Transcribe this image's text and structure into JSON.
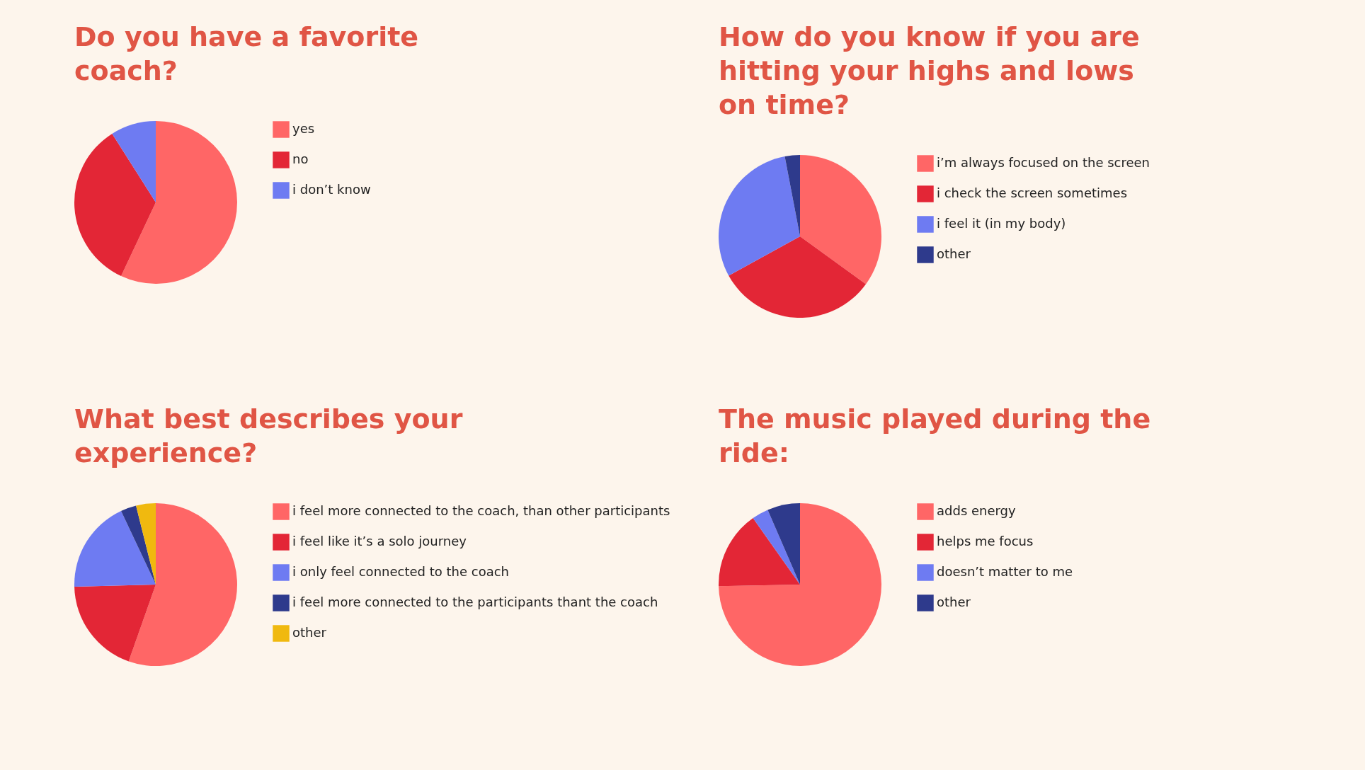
{
  "chart_data": [
    {
      "type": "pie",
      "title": "Do you have a favorite coach?",
      "categories": [
        "yes",
        "no",
        "i don’t know"
      ],
      "values": [
        57,
        34,
        9
      ],
      "colors": [
        "#ff6666",
        "#e32636",
        "#6e7bf2"
      ],
      "legend": "right"
    },
    {
      "type": "pie",
      "title": "How do you know if you are hitting your highs and lows on time?",
      "categories": [
        "i’m always focused on the screen",
        "i check the screen sometimes",
        "i feel it (in my body)",
        "other"
      ],
      "values": [
        35,
        32,
        30,
        3
      ],
      "colors": [
        "#ff6666",
        "#e32636",
        "#6e7bf2",
        "#2e3a8c"
      ],
      "legend": "right"
    },
    {
      "type": "pie",
      "title": "What best describes your experience?",
      "categories": [
        "i feel more connected to the coach, than other participants",
        "i feel like it’s a solo journey",
        "i only feel connected to the coach",
        "i feel more connected to the participants thant the coach",
        "other"
      ],
      "values": [
        55.4,
        19.2,
        18.4,
        3.1,
        3.9
      ],
      "colors": [
        "#ff6666",
        "#e32636",
        "#6e7bf2",
        "#2e3a8c",
        "#f0b90f"
      ],
      "legend": "right"
    },
    {
      "type": "pie",
      "title": "The music played during the ride:",
      "categories": [
        "adds energy",
        "helps me focus",
        "doesn’t matter to me",
        "other"
      ],
      "values": [
        74.7,
        15.5,
        3.3,
        6.5
      ],
      "colors": [
        "#ff6666",
        "#e32636",
        "#6e7bf2",
        "#2e3a8c"
      ],
      "legend": "right"
    }
  ]
}
